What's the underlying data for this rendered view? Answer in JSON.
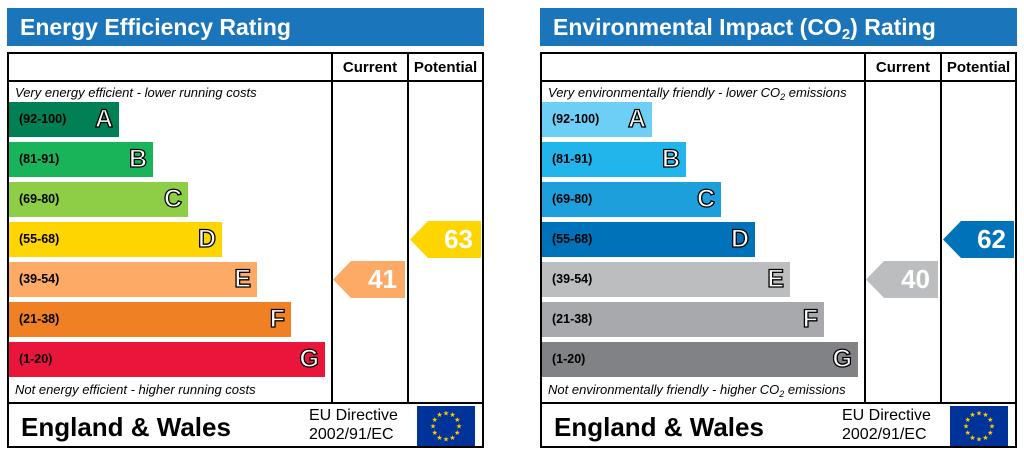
{
  "panels": [
    {
      "id": "energy",
      "title_main": "Energy Efficiency Rating",
      "title_sub": "",
      "title_tail": "",
      "columns": {
        "current": "Current",
        "potential": "Potential"
      },
      "top_note": "Very energy efficient - lower running costs",
      "top_note_sub": "",
      "top_note_tail": "",
      "bottom_note": "Not energy efficient - higher running costs",
      "bottom_note_sub": "",
      "bottom_note_tail": "",
      "bands": [
        {
          "range": "(92-100)",
          "letter": "A",
          "color": "#008054"
        },
        {
          "range": "(81-91)",
          "letter": "B",
          "color": "#19b459"
        },
        {
          "range": "(69-80)",
          "letter": "C",
          "color": "#8dce46"
        },
        {
          "range": "(55-68)",
          "letter": "D",
          "color": "#ffd500"
        },
        {
          "range": "(39-54)",
          "letter": "E",
          "color": "#fcaa65"
        },
        {
          "range": "(21-38)",
          "letter": "F",
          "color": "#ef8023"
        },
        {
          "range": "(1-20)",
          "letter": "G",
          "color": "#e9153b"
        }
      ],
      "current": {
        "value": "41",
        "band": "E",
        "color": "#fcaa65"
      },
      "potential": {
        "value": "63",
        "band": "D",
        "color": "#ffd500"
      },
      "footer_country": "England & Wales",
      "footer_directive_line1": "EU Directive",
      "footer_directive_line2": "2002/91/EC"
    },
    {
      "id": "environmental",
      "title_main": "Environmental Impact (CO",
      "title_sub": "2",
      "title_tail": ") Rating",
      "columns": {
        "current": "Current",
        "potential": "Potential"
      },
      "top_note": "Very environmentally friendly - lower CO",
      "top_note_sub": "2",
      "top_note_tail": " emissions",
      "bottom_note": "Not environmentally friendly - higher CO",
      "bottom_note_sub": "2",
      "bottom_note_tail": " emissions",
      "bands": [
        {
          "range": "(92-100)",
          "letter": "A",
          "color": "#6ecff6"
        },
        {
          "range": "(81-91)",
          "letter": "B",
          "color": "#22b5eb"
        },
        {
          "range": "(69-80)",
          "letter": "C",
          "color": "#1c9fdb"
        },
        {
          "range": "(55-68)",
          "letter": "D",
          "color": "#0072b9"
        },
        {
          "range": "(39-54)",
          "letter": "E",
          "color": "#bbbdbf"
        },
        {
          "range": "(21-38)",
          "letter": "F",
          "color": "#a7a9ac"
        },
        {
          "range": "(1-20)",
          "letter": "G",
          "color": "#808285"
        }
      ],
      "current": {
        "value": "40",
        "band": "E",
        "color": "#bbbdbf"
      },
      "potential": {
        "value": "62",
        "band": "D",
        "color": "#0072b9"
      },
      "footer_country": "England & Wales",
      "footer_directive_line1": "EU Directive",
      "footer_directive_line2": "2002/91/EC"
    }
  ]
}
